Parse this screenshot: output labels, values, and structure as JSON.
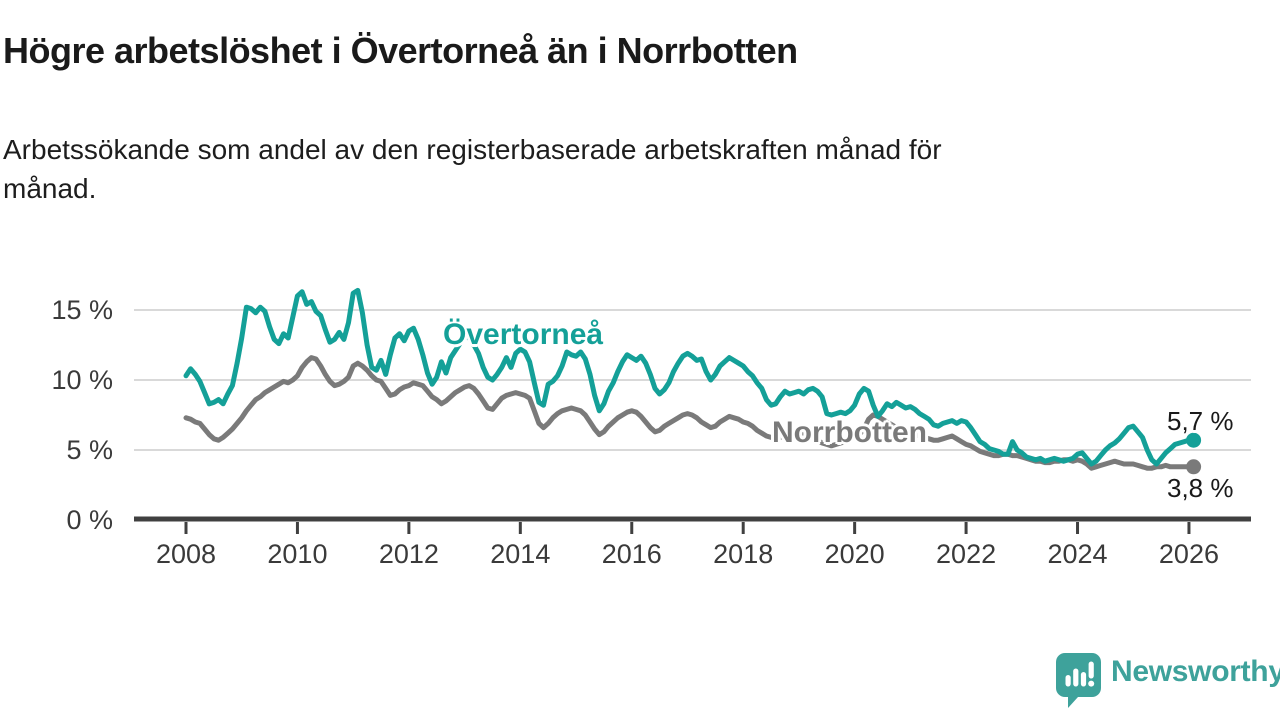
{
  "header": {
    "title": "Högre arbetslöshet i Övertorneå än i Norrbotten",
    "subtitle_line1": "Arbetssökande som andel av den registerbaserade arbetskraften månad för",
    "subtitle_line2": "månad."
  },
  "footer": {
    "brand": "Newsworthy",
    "brand_color": "#3ea29b"
  },
  "colors": {
    "accent_teal": "#14a098",
    "series_gray": "#7a7a7a",
    "grid": "#d9d9d9",
    "axis": "#404040",
    "text": "#1a1a1a"
  },
  "chart_data": {
    "type": "line",
    "title": "Högre arbetslöshet i Övertorneå än i Norrbotten",
    "subtitle": "Arbetssökande som andel av den registerbaserade arbetskraften månad för månad.",
    "x_unit": "month",
    "x_start": "2008-01",
    "x_end": "2026-02",
    "xlim": [
      2008,
      2026.17
    ],
    "ylim": [
      0,
      17.5
    ],
    "grid": "horizontal",
    "legend_position": "inline-labels",
    "x_tick_years": [
      "2008",
      "2010",
      "2012",
      "2014",
      "2016",
      "2018",
      "2020",
      "2022",
      "2024",
      "2026"
    ],
    "y_ticks": [
      {
        "value": 15,
        "label": "15 %",
        "grid": true
      },
      {
        "value": 10,
        "label": "10 %",
        "grid": true
      },
      {
        "value": 5,
        "label": "5 %",
        "grid": true
      },
      {
        "value": 0,
        "label": "0 %",
        "grid": false
      }
    ],
    "series": [
      {
        "name": "Övertorneå",
        "color": "#14a098",
        "end_label": "5,7 %",
        "end_value": 5.7,
        "values": [
          10.3,
          10.8,
          10.4,
          9.9,
          9.1,
          8.3,
          8.4,
          8.6,
          8.3,
          9.0,
          9.6,
          11.2,
          13.0,
          15.2,
          15.1,
          14.8,
          15.2,
          14.9,
          13.8,
          12.9,
          12.6,
          13.3,
          13.0,
          14.5,
          16.0,
          16.3,
          15.4,
          15.6,
          14.9,
          14.6,
          13.6,
          12.7,
          12.9,
          13.4,
          12.9,
          14.1,
          16.2,
          16.4,
          14.8,
          12.5,
          10.9,
          10.7,
          11.4,
          10.4,
          11.8,
          13.0,
          13.3,
          12.8,
          13.5,
          13.7,
          12.9,
          11.8,
          10.5,
          9.7,
          10.2,
          11.3,
          10.5,
          11.6,
          12.1,
          12.6,
          13.2,
          13.0,
          12.5,
          11.9,
          10.9,
          10.2,
          10.0,
          10.4,
          10.9,
          11.6,
          10.9,
          11.9,
          12.2,
          12.0,
          11.3,
          9.8,
          8.4,
          8.2,
          9.7,
          9.9,
          10.3,
          11.0,
          12.0,
          11.8,
          11.7,
          12.0,
          11.5,
          10.4,
          8.9,
          7.8,
          8.3,
          9.2,
          9.8,
          10.6,
          11.3,
          11.8,
          11.6,
          11.4,
          11.7,
          11.2,
          10.4,
          9.4,
          9.0,
          9.3,
          9.8,
          10.6,
          11.2,
          11.7,
          11.9,
          11.7,
          11.4,
          11.5,
          10.6,
          10.0,
          10.4,
          11.0,
          11.3,
          11.6,
          11.4,
          11.2,
          11.0,
          10.6,
          10.3,
          9.8,
          9.4,
          8.6,
          8.2,
          8.3,
          8.8,
          9.2,
          9.0,
          9.1,
          9.2,
          9.0,
          9.3,
          9.4,
          9.2,
          8.8,
          7.6,
          7.5,
          7.6,
          7.7,
          7.6,
          7.8,
          8.2,
          9.0,
          9.4,
          9.2,
          8.2,
          7.4,
          7.8,
          8.3,
          8.1,
          8.4,
          8.2,
          8.0,
          8.1,
          7.9,
          7.6,
          7.4,
          7.2,
          6.8,
          6.7,
          6.9,
          7.0,
          7.1,
          6.9,
          7.1,
          7.0,
          6.6,
          6.1,
          5.6,
          5.4,
          5.1,
          5.0,
          4.9,
          4.7,
          4.7,
          5.6,
          5.0,
          4.8,
          4.5,
          4.4,
          4.3,
          4.4,
          4.2,
          4.3,
          4.4,
          4.3,
          4.2,
          4.3,
          4.4,
          4.7,
          4.8,
          4.4,
          4.0,
          4.2,
          4.6,
          5.0,
          5.3,
          5.5,
          5.8,
          6.2,
          6.6,
          6.7,
          6.3,
          5.9,
          5.0,
          4.3,
          4.0,
          4.4,
          4.8,
          5.1,
          5.4,
          5.5,
          5.6,
          5.7,
          5.7
        ]
      },
      {
        "name": "Norrbotten",
        "color": "#7a7a7a",
        "end_label": "3,8 %",
        "end_value": 3.8,
        "values": [
          7.3,
          7.2,
          7.0,
          6.9,
          6.5,
          6.1,
          5.8,
          5.7,
          5.9,
          6.2,
          6.5,
          6.9,
          7.3,
          7.8,
          8.2,
          8.6,
          8.8,
          9.1,
          9.3,
          9.5,
          9.7,
          9.9,
          9.8,
          10.0,
          10.3,
          10.9,
          11.3,
          11.6,
          11.5,
          11.0,
          10.4,
          9.9,
          9.6,
          9.7,
          9.9,
          10.2,
          11.0,
          11.2,
          11.0,
          10.7,
          10.3,
          10.0,
          9.9,
          9.4,
          8.9,
          9.0,
          9.3,
          9.5,
          9.6,
          9.8,
          9.7,
          9.6,
          9.2,
          8.8,
          8.6,
          8.3,
          8.5,
          8.8,
          9.1,
          9.3,
          9.5,
          9.6,
          9.4,
          9.0,
          8.5,
          8.0,
          7.9,
          8.3,
          8.7,
          8.9,
          9.0,
          9.1,
          9.0,
          8.9,
          8.7,
          7.8,
          6.9,
          6.6,
          6.9,
          7.3,
          7.6,
          7.8,
          7.9,
          8.0,
          7.9,
          7.8,
          7.5,
          7.0,
          6.5,
          6.1,
          6.3,
          6.7,
          7.0,
          7.3,
          7.5,
          7.7,
          7.8,
          7.7,
          7.4,
          7.0,
          6.6,
          6.3,
          6.4,
          6.7,
          6.9,
          7.1,
          7.3,
          7.5,
          7.6,
          7.5,
          7.3,
          7.0,
          6.8,
          6.6,
          6.7,
          7.0,
          7.2,
          7.4,
          7.3,
          7.2,
          7.0,
          6.9,
          6.7,
          6.4,
          6.2,
          6.0,
          5.9,
          5.8,
          5.9,
          6.0,
          6.1,
          6.2,
          6.3,
          6.2,
          6.1,
          5.9,
          5.7,
          5.5,
          5.4,
          5.3,
          5.4,
          5.5,
          5.6,
          5.8,
          6.0,
          6.1,
          6.5,
          7.2,
          7.5,
          7.4,
          7.2,
          7.0,
          6.8,
          6.6,
          6.4,
          6.3,
          6.2,
          6.1,
          6.0,
          5.9,
          5.8,
          5.7,
          5.7,
          5.8,
          5.9,
          6.0,
          5.8,
          5.6,
          5.4,
          5.3,
          5.1,
          4.9,
          4.8,
          4.7,
          4.6,
          4.6,
          4.7,
          4.7,
          4.6,
          4.6,
          4.5,
          4.4,
          4.3,
          4.2,
          4.2,
          4.1,
          4.1,
          4.2,
          4.2,
          4.3,
          4.3,
          4.2,
          4.3,
          4.2,
          4.0,
          3.7,
          3.8,
          3.9,
          4.0,
          4.1,
          4.2,
          4.1,
          4.0,
          4.0,
          4.0,
          3.9,
          3.8,
          3.7,
          3.7,
          3.8,
          3.8,
          3.9,
          3.8,
          3.8,
          3.8,
          3.8,
          3.8,
          3.8
        ]
      }
    ]
  }
}
